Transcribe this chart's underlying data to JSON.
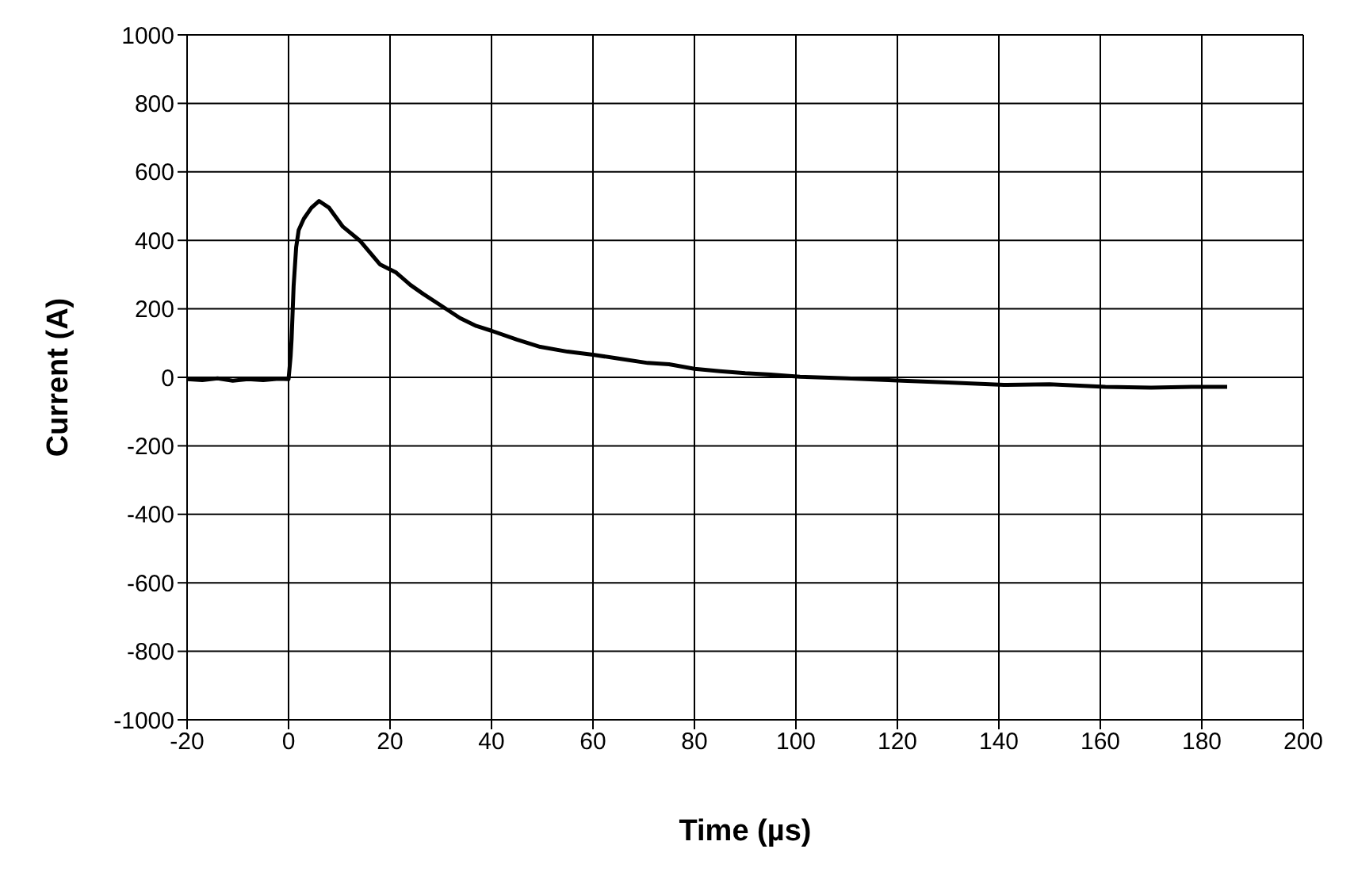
{
  "chart_data": {
    "type": "line",
    "xlabel": "Time (µs)",
    "ylabel": "Current (A)",
    "x": [
      -20,
      -17,
      -14,
      -11,
      -8,
      -5,
      -2,
      0,
      0.4,
      0.6,
      1,
      1.5,
      2,
      3,
      4.5,
      6,
      8,
      10.7,
      14,
      18,
      21.2,
      24,
      26.5,
      30,
      33.8,
      37,
      40,
      45,
      49.6,
      55,
      60,
      65,
      70.8,
      75,
      80,
      85,
      90,
      95,
      100.8,
      110,
      121,
      130,
      141,
      150,
      161,
      170,
      178,
      185
    ],
    "series": [
      {
        "color": "#000000",
        "values": [
          -5,
          -8,
          -3,
          -10,
          -5,
          -8,
          -4,
          -5,
          60,
          112,
          267,
          380,
          430,
          463,
          495,
          515,
          495,
          440,
          400,
          330,
          306,
          270,
          244,
          210,
          173,
          150,
          136,
          110,
          89,
          75,
          66,
          55,
          42,
          38,
          25,
          18,
          12,
          8,
          2,
          -3,
          -10,
          -15,
          -22,
          -20,
          -28,
          -30,
          -28,
          -28
        ]
      }
    ],
    "xlim": [
      -20,
      200
    ],
    "xticks": [
      -20,
      0,
      20,
      40,
      60,
      80,
      100,
      120,
      140,
      160,
      180,
      200
    ],
    "ylim": [
      -1000,
      1000
    ],
    "yticks": [
      -1000,
      -800,
      -600,
      -400,
      -200,
      0,
      200,
      400,
      600,
      800,
      1000
    ],
    "grid": true,
    "legend": false,
    "marker": "none",
    "line_style": "solid"
  }
}
